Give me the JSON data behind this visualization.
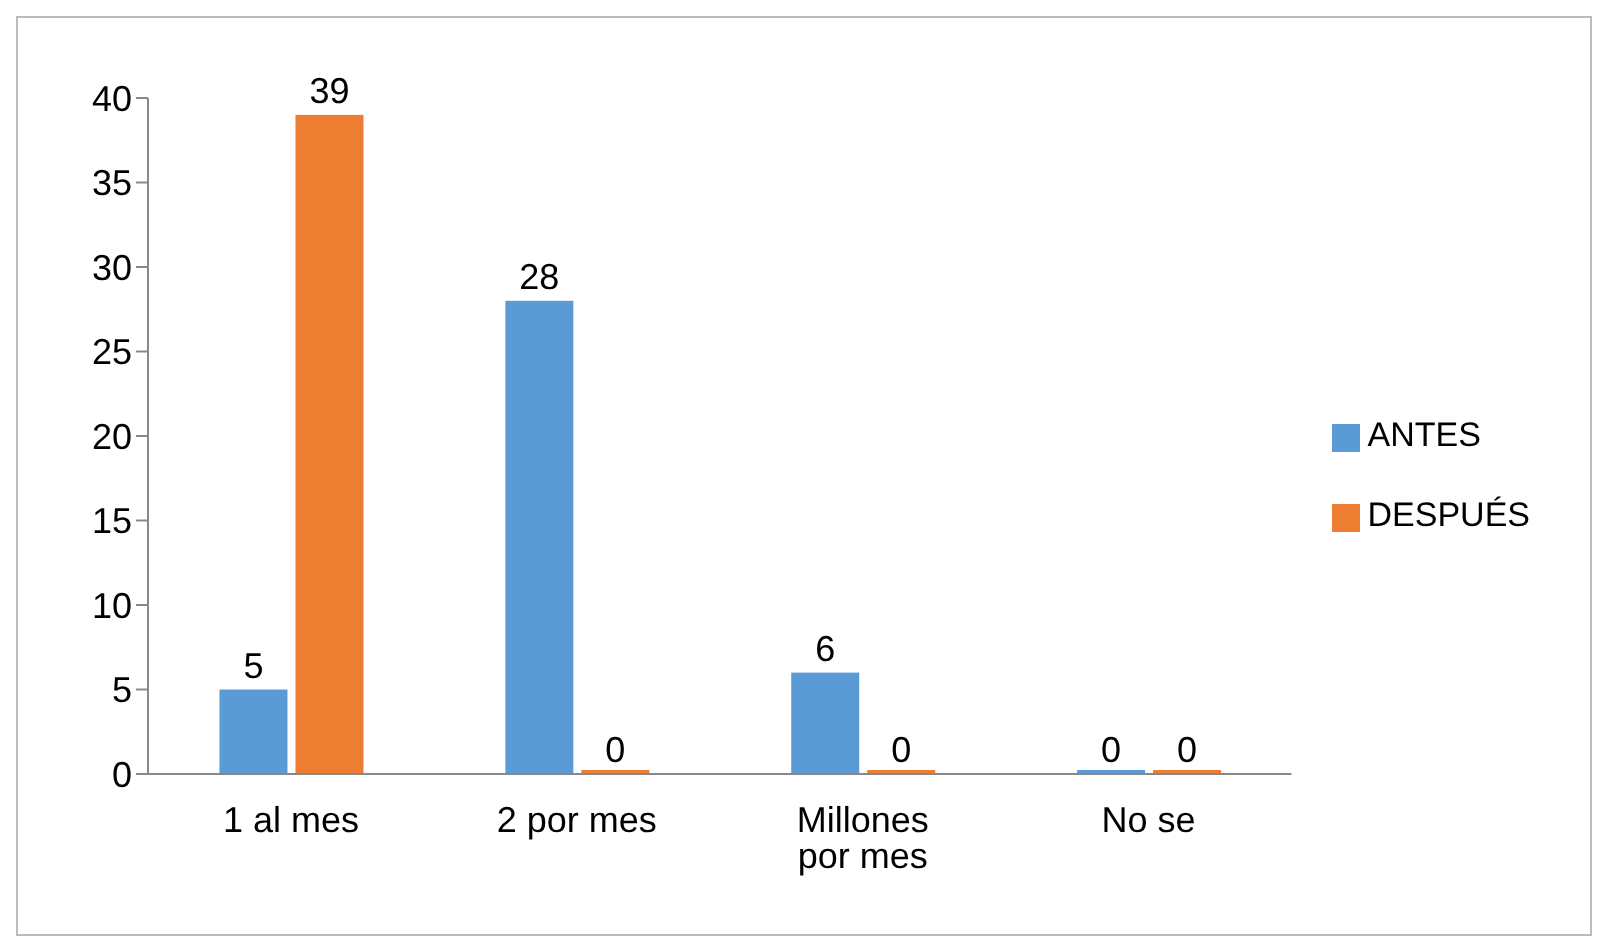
{
  "chart_data": {
    "type": "bar",
    "categories": [
      "1 al mes",
      "2 por mes",
      "Millones por mes",
      "No se"
    ],
    "series": [
      {
        "name": "ANTES",
        "color": "#5b9bd5",
        "values": [
          5,
          28,
          6,
          0
        ]
      },
      {
        "name": "DESPUÉS",
        "color": "#ed7d31",
        "values": [
          39,
          0,
          0,
          0
        ]
      }
    ],
    "ylim": [
      0,
      40
    ],
    "yticks": [
      0,
      5,
      10,
      15,
      20,
      25,
      30,
      35,
      40
    ],
    "grid": false,
    "legend": "right",
    "data_labels": true
  }
}
